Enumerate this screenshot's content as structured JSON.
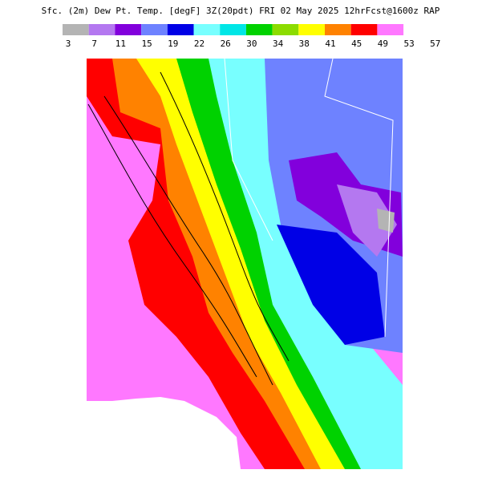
{
  "header": {
    "title": "Sfc. (2m) Dew Pt. Temp. [degF] 3Z(20pdt) FRI 02 May 2025 12hrFcst@1600z RAP"
  },
  "legend": {
    "colors": [
      "#b4b4b4",
      "#b478f0",
      "#8200dc",
      "#6e82ff",
      "#0000e6",
      "#78ffff",
      "#00e6e6",
      "#00d200",
      "#8cdc00",
      "#ffff00",
      "#ff8200",
      "#ff0000",
      "#ff78ff"
    ],
    "labels": [
      3,
      7,
      11,
      15,
      19,
      22,
      26,
      30,
      34,
      38,
      41,
      45,
      49,
      53,
      57
    ]
  }
}
